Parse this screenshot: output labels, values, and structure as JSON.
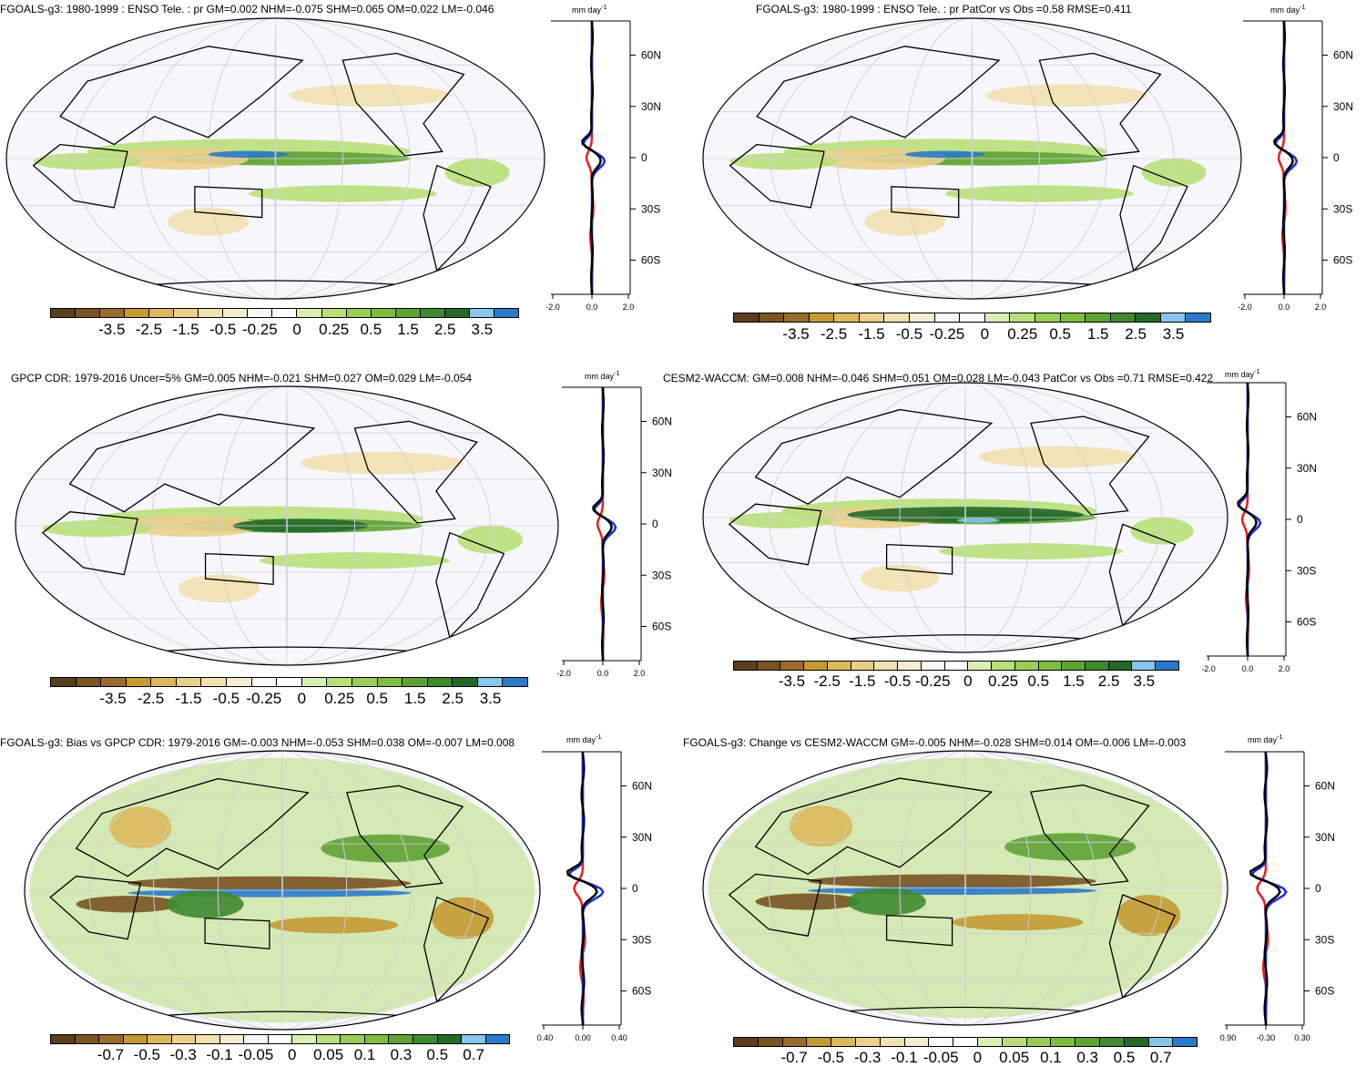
{
  "panels": [
    {
      "title": "FGOALS-g3: 1980-1999 : ENSO Tele. : pr GM=0.002 NHM=-0.075 SHM=0.065 OM=0.022 LM=-0.046",
      "zonal_unit": "mm day",
      "zonal_unit_sup": "-1",
      "lat_labels": [
        "60N",
        "30N",
        "0",
        "30S",
        "60S"
      ],
      "zonal_xticks": [
        "-2.0",
        "0.0",
        "2.0"
      ],
      "colorbar_labels": [
        "-3.5",
        "-2.5",
        "-1.5",
        "-0.5",
        "-0.25",
        "0",
        "0.25",
        "0.5",
        "1.5",
        "2.5",
        "3.5"
      ]
    },
    {
      "title": "FGOALS-g3: 1980-1999 : ENSO Tele. : pr PatCor vs Obs =0.58 RMSE=0.411",
      "zonal_unit": "mm day",
      "zonal_unit_sup": "-1",
      "lat_labels": [
        "60N",
        "30N",
        "0",
        "30S",
        "60S"
      ],
      "zonal_xticks": [
        "-2.0",
        "0.0",
        "2.0"
      ],
      "colorbar_labels": [
        "-3.5",
        "-2.5",
        "-1.5",
        "-0.5",
        "-0.25",
        "0",
        "0.25",
        "0.5",
        "1.5",
        "2.5",
        "3.5"
      ]
    },
    {
      "title": "GPCP CDR: 1979-2016 Uncer=5% GM=0.005 NHM=-0.021 SHM=0.027 OM=0.029 LM=-0.054",
      "zonal_unit": "mm day",
      "zonal_unit_sup": "-1",
      "lat_labels": [
        "60N",
        "30N",
        "0",
        "30S",
        "60S"
      ],
      "zonal_xticks": [
        "-2.0",
        "0.0",
        "2.0"
      ],
      "colorbar_labels": [
        "-3.5",
        "-2.5",
        "-1.5",
        "-0.5",
        "-0.25",
        "0",
        "0.25",
        "0.5",
        "1.5",
        "2.5",
        "3.5"
      ]
    },
    {
      "title": "CESM2-WACCM: GM=0.008 NHM=-0.046 SHM=0.051 OM=0.028 LM=-0.043 PatCor vs Obs =0.71 RMSE=0.422",
      "zonal_unit": "mm day",
      "zonal_unit_sup": "-1",
      "lat_labels": [
        "60N",
        "30N",
        "0",
        "30S",
        "60S"
      ],
      "zonal_xticks": [
        "-2.0",
        "0.0",
        "2.0"
      ],
      "colorbar_labels": [
        "-3.5",
        "-2.5",
        "-1.5",
        "-0.5",
        "-0.25",
        "0",
        "0.25",
        "0.5",
        "1.5",
        "2.5",
        "3.5"
      ]
    },
    {
      "title": "FGOALS-g3: Bias vs GPCP CDR: 1979-2016 GM=-0.003 NHM=-0.053 SHM=0.038 OM=-0.007 LM=0.008",
      "zonal_unit": "mm day",
      "zonal_unit_sup": "-1",
      "lat_labels": [
        "60N",
        "30N",
        "0",
        "30S",
        "60S"
      ],
      "zonal_xticks": [
        "-0.40",
        "0.00",
        "0.40"
      ],
      "colorbar_labels": [
        "-0.7",
        "-0.5",
        "-0.3",
        "-0.1",
        "-0.05",
        "0",
        "0.05",
        "0.1",
        "0.3",
        "0.5",
        "0.7"
      ]
    },
    {
      "title": "FGOALS-g3: Change vs CESM2-WACCM GM=-0.005 NHM=-0.028 SHM=0.014 OM=-0.006 LM=-0.003",
      "zonal_unit": "mm day",
      "zonal_unit_sup": "-1",
      "lat_labels": [
        "60N",
        "30N",
        "0",
        "30S",
        "60S"
      ],
      "zonal_xticks": [
        "-0.90",
        "-0.30",
        "0.30"
      ],
      "colorbar_labels": [
        "-0.7",
        "-0.5",
        "-0.3",
        "-0.1",
        "-0.05",
        "0",
        "0.05",
        "0.1",
        "0.3",
        "0.5",
        "0.7"
      ]
    }
  ],
  "colors": {
    "scale": [
      "#5a3d1a",
      "#7a5322",
      "#9a6b2c",
      "#c49a33",
      "#dcb85a",
      "#ead08c",
      "#f1e0b0",
      "#f6ecd2",
      "#f8f8fb",
      "#ffffff",
      "#d9efb3",
      "#b8df7a",
      "#9acd55",
      "#7fbd3e",
      "#5fa335",
      "#3f8a2e",
      "#24692a",
      "#87c6ea",
      "#2b7ac8"
    ],
    "map_bg": "#f7f7fb",
    "obs_line": "#000000",
    "model_line": "#e62020",
    "alt_line": "#1a2ee6"
  }
}
